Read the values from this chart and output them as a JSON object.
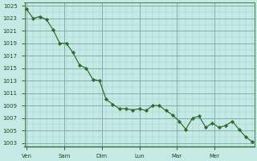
{
  "y_values": [
    1024.5,
    1023.0,
    1023.3,
    1022.8,
    1021.2,
    1019.0,
    1019.0,
    1017.5,
    1015.5,
    1015.0,
    1013.2,
    1013.0,
    1010.0,
    1009.2,
    1008.5,
    1008.5,
    1008.3,
    1008.5,
    1008.2,
    1009.0,
    1009.0,
    1008.2,
    1007.5,
    1006.5,
    1005.2,
    1007.0,
    1007.3,
    1005.5,
    1006.2,
    1005.5,
    1005.8,
    1006.5,
    1005.2,
    1004.0,
    1003.2
  ],
  "y_min": 1002.5,
  "y_max": 1025.5,
  "y_ticks": [
    1003,
    1005,
    1007,
    1009,
    1011,
    1013,
    1015,
    1017,
    1019,
    1021,
    1023,
    1025
  ],
  "day_labels": [
    "Ven",
    "Sam",
    "Dim",
    "Lun",
    "Mar",
    "Mer"
  ],
  "line_color": "#2d6b2d",
  "marker_color": "#2d6b2d",
  "bg_color": "#c5eae6",
  "grid_major_color": "#7ab0ac",
  "grid_minor_color": "#a0ccc8",
  "tick_label_color": "#1a4a1a",
  "spine_color": "#2d6b2d"
}
